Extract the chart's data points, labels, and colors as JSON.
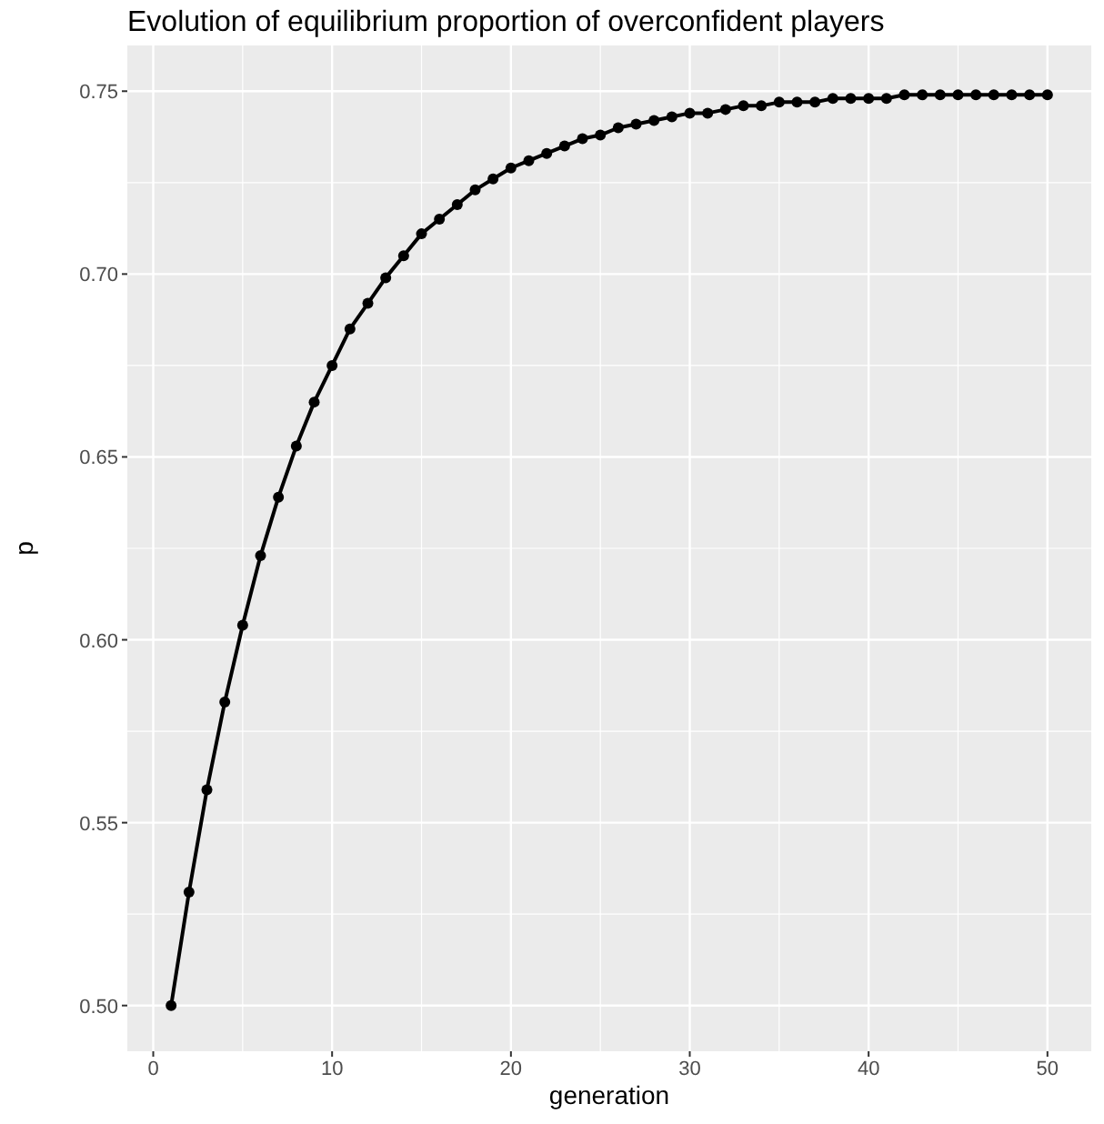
{
  "chart_data": {
    "type": "line",
    "title": "Evolution of equilibrium proportion of overconfident players",
    "xlabel": "generation",
    "ylabel": "p",
    "x": [
      1,
      2,
      3,
      4,
      5,
      6,
      7,
      8,
      9,
      10,
      11,
      12,
      13,
      14,
      15,
      16,
      17,
      18,
      19,
      20,
      21,
      22,
      23,
      24,
      25,
      26,
      27,
      28,
      29,
      30,
      31,
      32,
      33,
      34,
      35,
      36,
      37,
      38,
      39,
      40,
      41,
      42,
      43,
      44,
      45,
      46,
      47,
      48,
      49,
      50
    ],
    "series": [
      {
        "color": "#000000",
        "values": [
          0.5,
          0.531,
          0.559,
          0.583,
          0.604,
          0.623,
          0.639,
          0.653,
          0.665,
          0.675,
          0.685,
          0.692,
          0.699,
          0.705,
          0.711,
          0.715,
          0.719,
          0.723,
          0.726,
          0.729,
          0.731,
          0.733,
          0.735,
          0.737,
          0.738,
          0.74,
          0.741,
          0.742,
          0.743,
          0.744,
          0.744,
          0.745,
          0.746,
          0.746,
          0.747,
          0.747,
          0.747,
          0.748,
          0.748,
          0.748,
          0.748,
          0.749,
          0.749,
          0.749,
          0.749,
          0.749,
          0.749,
          0.749,
          0.749,
          0.749
        ]
      }
    ],
    "xlim": [
      -1.45,
      52.45
    ],
    "ylim": [
      0.4875,
      0.7625
    ],
    "xticks": [
      0,
      10,
      20,
      30,
      40,
      50
    ],
    "yticks": [
      {
        "value": 0.5,
        "label": "0.50"
      },
      {
        "value": 0.55,
        "label": "0.55"
      },
      {
        "value": 0.6,
        "label": "0.60"
      },
      {
        "value": 0.65,
        "label": "0.65"
      },
      {
        "value": 0.7,
        "label": "0.70"
      },
      {
        "value": 0.75,
        "label": "0.75"
      }
    ],
    "grid": true,
    "marker": "circle",
    "line_style": "solid"
  }
}
